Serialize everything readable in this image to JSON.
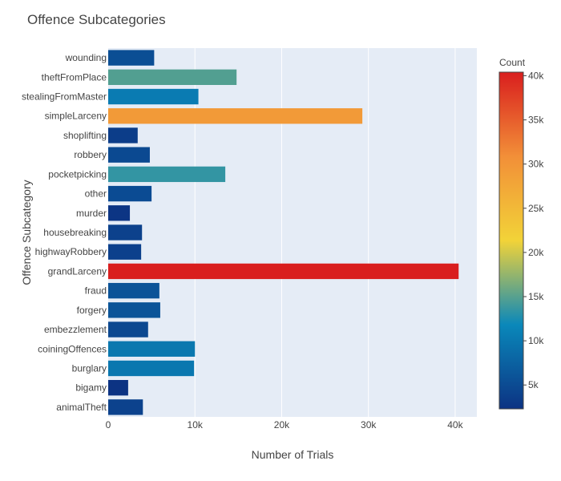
{
  "chart_data": {
    "type": "bar",
    "orientation": "horizontal",
    "title": "Offence Subcategories",
    "xlabel": "Number of Trials",
    "ylabel": "Offence Subcategory",
    "xlim": [
      0,
      42500
    ],
    "x_ticks": [
      0,
      10000,
      20000,
      30000,
      40000
    ],
    "x_tick_labels": [
      "0",
      "10k",
      "20k",
      "30k",
      "40k"
    ],
    "grid": true,
    "categories": [
      "wounding",
      "theftFromPlace",
      "stealingFromMaster",
      "simpleLarceny",
      "shoplifting",
      "robbery",
      "pocketpicking",
      "other",
      "murder",
      "housebreaking",
      "highwayRobbery",
      "grandLarceny",
      "fraud",
      "forgery",
      "embezzlement",
      "coiningOffences",
      "burglary",
      "bigamy",
      "animalTheft"
    ],
    "values": [
      5300,
      14800,
      10400,
      29300,
      3400,
      4800,
      13500,
      5000,
      2500,
      3900,
      3800,
      40400,
      5900,
      6000,
      4600,
      10000,
      9900,
      2300,
      4000
    ],
    "colorbar": {
      "title": "Count",
      "range": [
        2300,
        40400
      ],
      "ticks": [
        5000,
        10000,
        15000,
        20000,
        25000,
        30000,
        35000,
        40000
      ],
      "tick_labels": [
        "5k",
        "10k",
        "15k",
        "20k",
        "25k",
        "30k",
        "35k",
        "40k"
      ],
      "colorscale": [
        "#0c3383",
        "#0a88ba",
        "#f2d338",
        "#f28f38",
        "#d91e1e"
      ]
    }
  }
}
